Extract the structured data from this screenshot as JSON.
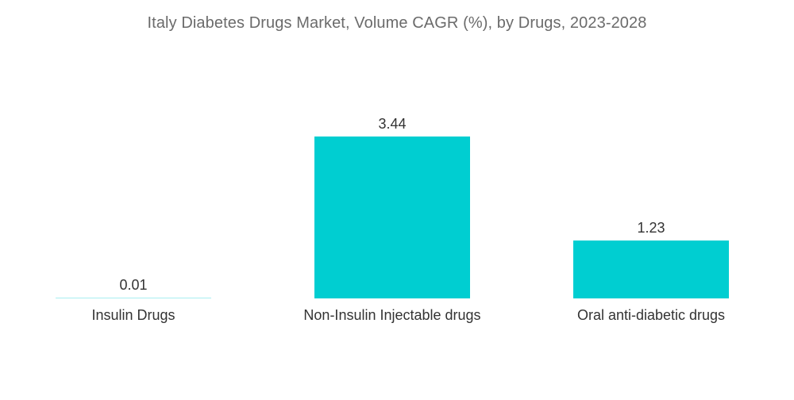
{
  "chart_data": {
    "type": "bar",
    "title": "Italy Diabetes Drugs Market, Volume CAGR (%), by Drugs, 2023-2028",
    "categories": [
      "Insulin Drugs",
      "Non-Insulin Injectable drugs",
      "Oral anti-diabetic drugs"
    ],
    "values": [
      0.01,
      3.44,
      1.23
    ],
    "value_labels": [
      "0.01",
      "3.44",
      "1.23"
    ],
    "xlabel": "",
    "ylabel": "",
    "ylim": [
      0,
      3.44
    ],
    "grid": false,
    "legend": "none",
    "colors": {
      "bar": "#00CED1",
      "zero_bar": "#A8EEF0"
    }
  }
}
